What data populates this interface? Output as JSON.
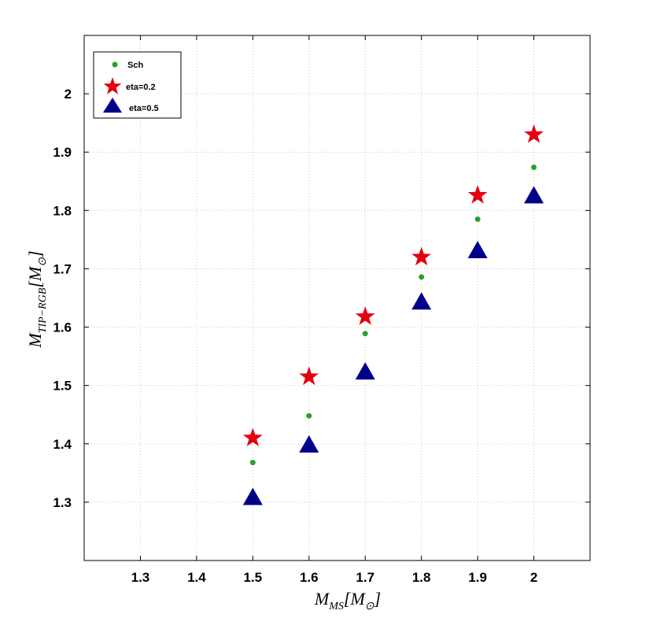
{
  "chart_data": {
    "type": "scatter",
    "xlabel": "M_{MS}[M_⊙]",
    "ylabel": "M_{TIP-RGB}[M_⊙]",
    "xlim": [
      1.2,
      2.1
    ],
    "ylim": [
      1.2,
      2.1
    ],
    "xticks": [
      1.3,
      1.4,
      1.5,
      1.6,
      1.7,
      1.8,
      1.9,
      2
    ],
    "yticks": [
      1.3,
      1.4,
      1.5,
      1.6,
      1.7,
      1.8,
      1.9,
      2
    ],
    "xtick_labels": [
      "1.3",
      "1.4",
      "1.5",
      "1.6",
      "1.7",
      "1.8",
      "1.9",
      "2"
    ],
    "ytick_labels": [
      "1.3",
      "1.4",
      "1.5",
      "1.6",
      "1.7",
      "1.8",
      "1.9",
      "2"
    ],
    "grid": true,
    "legend_position": "top-left",
    "series": [
      {
        "name": "Sch",
        "marker": "circle",
        "color": "#2ca02c",
        "x": [
          1.5,
          1.6,
          1.7,
          1.8,
          1.9,
          2.0
        ],
        "y": [
          1.368,
          1.448,
          1.589,
          1.686,
          1.785,
          1.874
        ]
      },
      {
        "name": "eta=0.2",
        "marker": "star",
        "color": "#e3000f",
        "x": [
          1.5,
          1.6,
          1.7,
          1.8,
          1.9,
          2.0
        ],
        "y": [
          1.41,
          1.515,
          1.618,
          1.72,
          1.826,
          1.93
        ]
      },
      {
        "name": "eta=0.5",
        "marker": "triangle",
        "color": "#00008b",
        "x": [
          1.5,
          1.6,
          1.7,
          1.8,
          1.9,
          2.0
        ],
        "y": [
          1.305,
          1.395,
          1.52,
          1.64,
          1.728,
          1.822
        ]
      }
    ]
  }
}
